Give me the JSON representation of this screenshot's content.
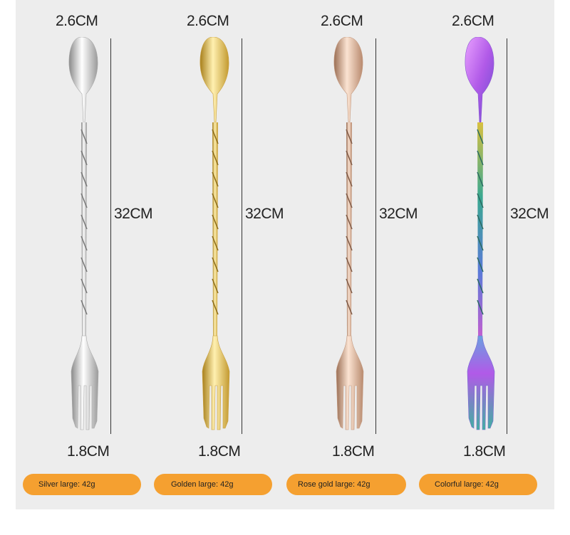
{
  "products": [
    {
      "name": "silver",
      "top_width": "2.6CM",
      "length": "32CM",
      "bottom_width": "1.8CM",
      "label": "Silver large: 42g",
      "colors": {
        "light": "#ffffff",
        "mid": "#e6e6e6",
        "dark": "#8a8a8a"
      }
    },
    {
      "name": "golden",
      "top_width": "2.6CM",
      "length": "32CM",
      "bottom_width": "1.8CM",
      "label": "Golden large: 42g",
      "colors": {
        "light": "#fff0b0",
        "mid": "#f2cc68",
        "dark": "#a8801c"
      }
    },
    {
      "name": "rose-gold",
      "top_width": "2.6CM",
      "length": "32CM",
      "bottom_width": "1.8CM",
      "label": "Rose gold large: 42g",
      "colors": {
        "light": "#fbe3d2",
        "mid": "#efc3a4",
        "dark": "#9b6f55"
      }
    },
    {
      "name": "colorful",
      "top_width": "2.6CM",
      "length": "32CM",
      "bottom_width": "1.8CM",
      "label": "Colorful large: 42g",
      "colors": {
        "light": "#e8a0ff",
        "mid": "#b15ae8",
        "dark": "#3aa890"
      }
    }
  ],
  "accent": "#f5a030"
}
